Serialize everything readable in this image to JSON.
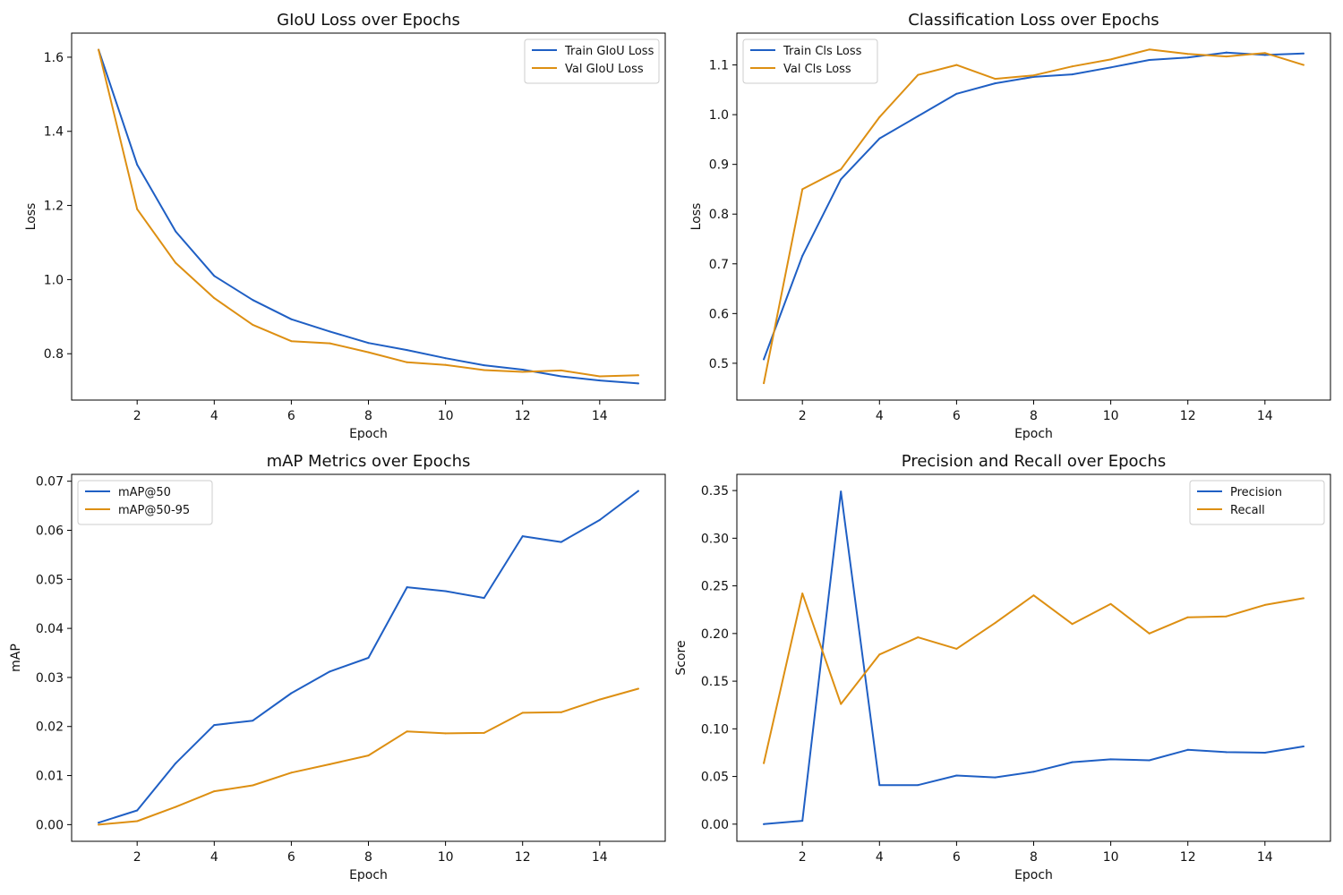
{
  "colors": {
    "series_1": "#1f5fc4",
    "series_2": "#dd8f12",
    "axis": "#000000",
    "text": "#111111"
  },
  "chart_data": [
    {
      "type": "line",
      "title": "GIoU Loss over Epochs",
      "xlabel": "Epoch",
      "ylabel": "Loss",
      "x": [
        1,
        2,
        3,
        4,
        5,
        6,
        7,
        8,
        9,
        10,
        11,
        12,
        13,
        14,
        15
      ],
      "series": [
        {
          "name": "Train GIoU Loss",
          "color": "#1f5fc4",
          "values": [
            1.62,
            1.31,
            1.13,
            1.01,
            0.945,
            0.893,
            0.86,
            0.829,
            0.81,
            0.788,
            0.769,
            0.757,
            0.739,
            0.728,
            0.72
          ]
        },
        {
          "name": "Val GIoU Loss",
          "color": "#dd8f12",
          "values": [
            1.62,
            1.19,
            1.045,
            0.95,
            0.878,
            0.834,
            0.828,
            0.804,
            0.777,
            0.77,
            0.756,
            0.751,
            0.755,
            0.739,
            0.742
          ]
        }
      ],
      "xlim": [
        0.3,
        15.7
      ],
      "ylim": [
        0.675,
        1.665
      ],
      "xticks": [
        2,
        4,
        6,
        8,
        10,
        12,
        14
      ],
      "yticks": [
        0.8,
        1.0,
        1.2,
        1.4,
        1.6
      ],
      "ytick_decimals": 1,
      "legend": "top-right",
      "grid": false
    },
    {
      "type": "line",
      "title": "Classification Loss over Epochs",
      "xlabel": "Epoch",
      "ylabel": "Loss",
      "x": [
        1,
        2,
        3,
        4,
        5,
        6,
        7,
        8,
        9,
        10,
        11,
        12,
        13,
        14,
        15
      ],
      "series": [
        {
          "name": "Train Cls Loss",
          "color": "#1f5fc4",
          "values": [
            0.508,
            0.716,
            0.87,
            0.952,
            0.997,
            1.042,
            1.063,
            1.076,
            1.081,
            1.095,
            1.11,
            1.115,
            1.125,
            1.12,
            1.123
          ]
        },
        {
          "name": "Val Cls Loss",
          "color": "#dd8f12",
          "values": [
            0.46,
            0.85,
            0.89,
            0.995,
            1.08,
            1.1,
            1.072,
            1.079,
            1.097,
            1.111,
            1.131,
            1.122,
            1.117,
            1.124,
            1.1
          ]
        }
      ],
      "xlim": [
        0.3,
        15.7
      ],
      "ylim": [
        0.426,
        1.164
      ],
      "xticks": [
        2,
        4,
        6,
        8,
        10,
        12,
        14
      ],
      "yticks": [
        0.5,
        0.6,
        0.7,
        0.8,
        0.9,
        1.0,
        1.1
      ],
      "ytick_decimals": 1,
      "legend": "top-left",
      "grid": false
    },
    {
      "type": "line",
      "title": "mAP Metrics over Epochs",
      "xlabel": "Epoch",
      "ylabel": "mAP",
      "x": [
        1,
        2,
        3,
        4,
        5,
        6,
        7,
        8,
        9,
        10,
        11,
        12,
        13,
        14,
        15
      ],
      "series": [
        {
          "name": "mAP@50",
          "color": "#1f5fc4",
          "values": [
            0.0004,
            0.0029,
            0.0125,
            0.0203,
            0.0212,
            0.0268,
            0.0312,
            0.034,
            0.0484,
            0.0476,
            0.0462,
            0.0588,
            0.0576,
            0.0621,
            0.068
          ]
        },
        {
          "name": "mAP@50-95",
          "color": "#dd8f12",
          "values": [
            0.0,
            0.0007,
            0.0036,
            0.0068,
            0.008,
            0.0106,
            0.0123,
            0.0141,
            0.019,
            0.0186,
            0.0187,
            0.0228,
            0.0229,
            0.0255,
            0.0277
          ]
        }
      ],
      "xlim": [
        0.3,
        15.7
      ],
      "ylim": [
        -0.0034,
        0.0714
      ],
      "xticks": [
        2,
        4,
        6,
        8,
        10,
        12,
        14
      ],
      "yticks": [
        0.0,
        0.01,
        0.02,
        0.03,
        0.04,
        0.05,
        0.06,
        0.07
      ],
      "ytick_decimals": 2,
      "legend": "top-left",
      "grid": false
    },
    {
      "type": "line",
      "title": "Precision and Recall over Epochs",
      "xlabel": "Epoch",
      "ylabel": "Score",
      "x": [
        1,
        2,
        3,
        4,
        5,
        6,
        7,
        8,
        9,
        10,
        11,
        12,
        13,
        14,
        15
      ],
      "series": [
        {
          "name": "Precision",
          "color": "#1f5fc4",
          "values": [
            0.0,
            0.0035,
            0.349,
            0.041,
            0.041,
            0.051,
            0.049,
            0.055,
            0.065,
            0.068,
            0.067,
            0.078,
            0.0755,
            0.075,
            0.0815
          ]
        },
        {
          "name": "Recall",
          "color": "#dd8f12",
          "values": [
            0.064,
            0.242,
            0.126,
            0.178,
            0.196,
            0.184,
            0.211,
            0.24,
            0.21,
            0.231,
            0.2,
            0.217,
            0.218,
            0.23,
            0.237
          ]
        }
      ],
      "xlim": [
        0.3,
        15.7
      ],
      "ylim": [
        -0.018,
        0.367
      ],
      "xticks": [
        2,
        4,
        6,
        8,
        10,
        12,
        14
      ],
      "yticks": [
        0.0,
        0.05,
        0.1,
        0.15,
        0.2,
        0.25,
        0.3,
        0.35
      ],
      "ytick_decimals": 2,
      "legend": "top-right",
      "grid": false
    }
  ]
}
